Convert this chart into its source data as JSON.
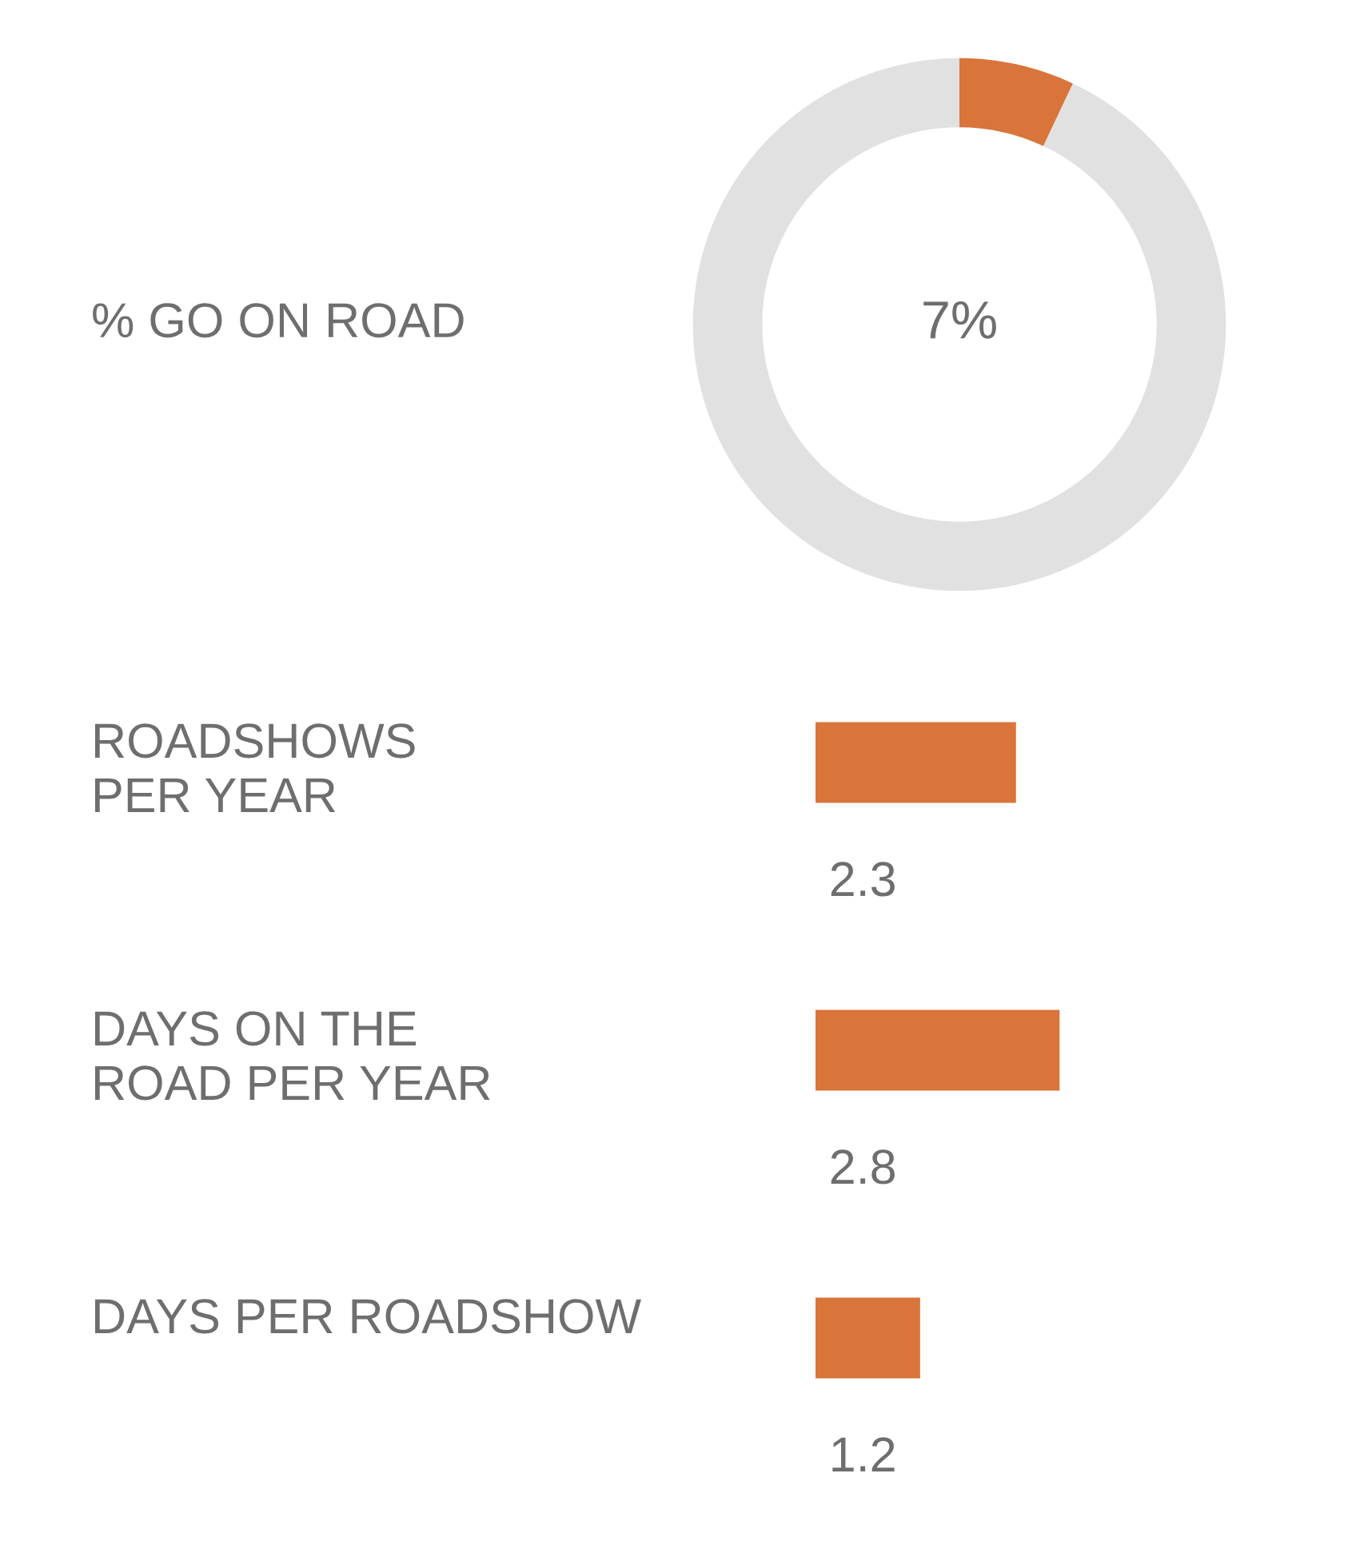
{
  "chart_data": [
    {
      "type": "donut",
      "title": "% GO ON ROAD",
      "categories": [
        null,
        null
      ],
      "values": [
        7,
        93
      ],
      "colors": [
        "#d9743b",
        "#e0e1e0"
      ],
      "value_labels": [
        "7%",
        null
      ]
    },
    {
      "type": "bar",
      "orientation": "horizontal",
      "categories": [
        "ROADSHOWS\nPER YEAR",
        "DAYS ON THE\nROAD PER YEAR",
        "DAYS PER ROADSHOW"
      ],
      "values": [
        2.3,
        2.8,
        1.2
      ],
      "color": "#d9743b",
      "data_labels": true,
      "tick_labels": "y"
    }
  ]
}
